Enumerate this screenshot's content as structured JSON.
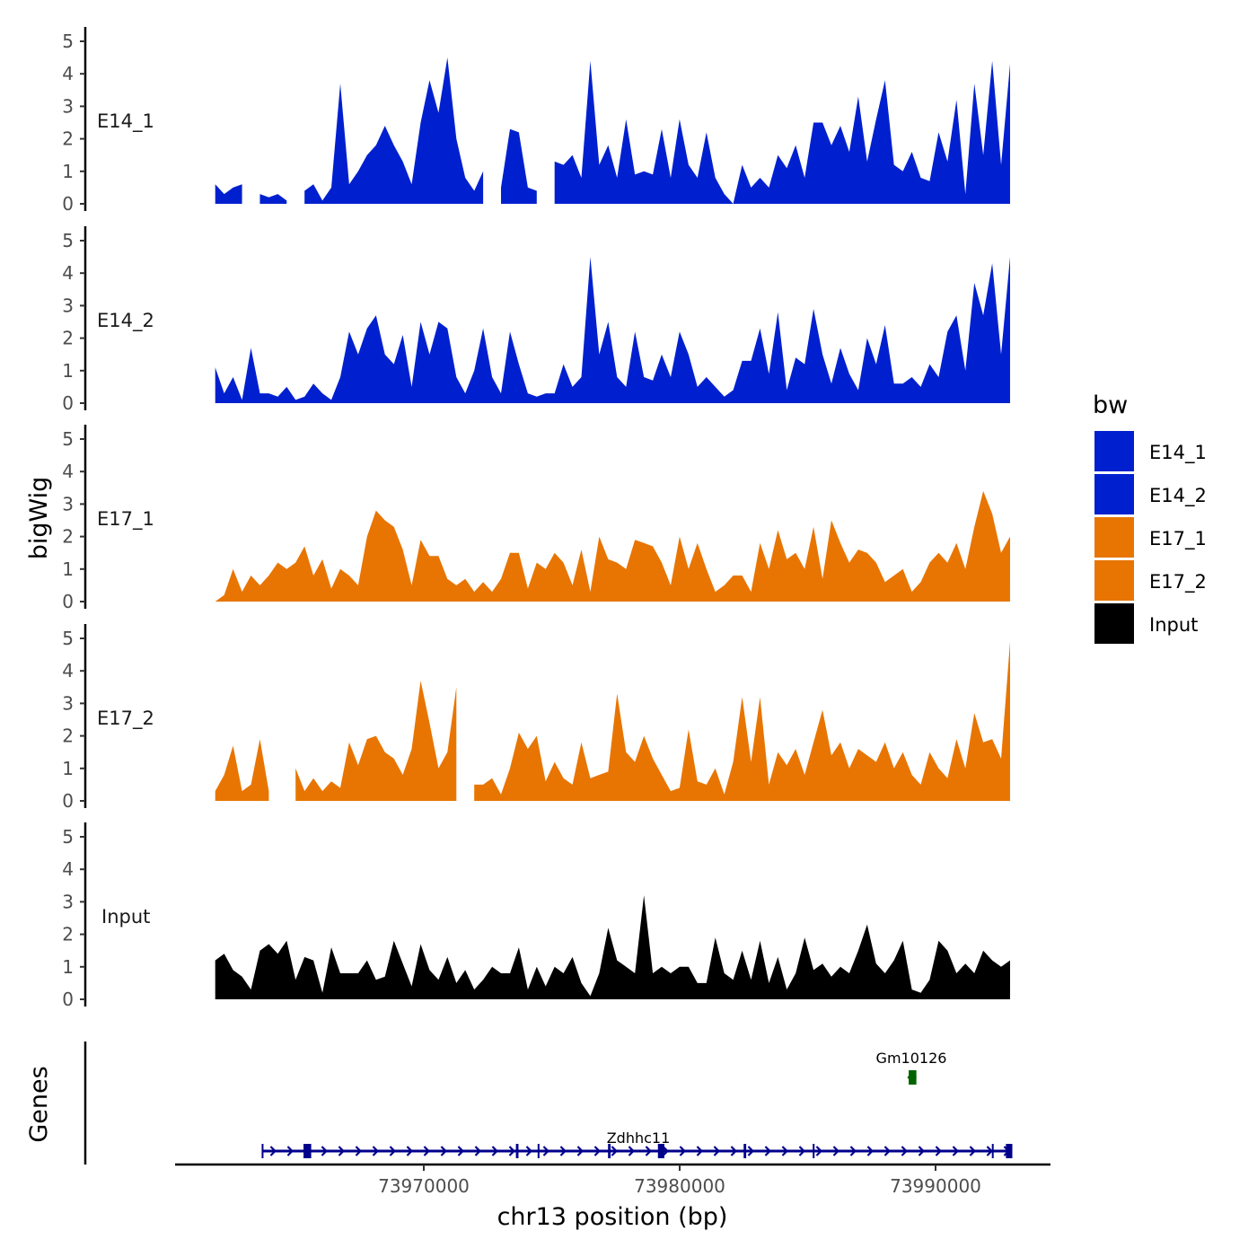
{
  "chart_data": {
    "type": "area",
    "title": "",
    "xlabel": "chr13 position (bp)",
    "ylabel": "bigWig",
    "genes_label": "Genes",
    "xlim": [
      73956500,
      73995000
    ],
    "ylim": [
      0,
      5
    ],
    "x_ticks": [
      73970000,
      73980000,
      73990000
    ],
    "x_tick_labels": [
      "73970000",
      "73980000",
      "73990000"
    ],
    "y_ticks": [
      0,
      1,
      2,
      3,
      4,
      5
    ],
    "y_tick_labels": [
      "0",
      "1",
      "2",
      "3",
      "4",
      "5"
    ],
    "x_start": 73961850,
    "x_step": 349,
    "legend": {
      "title": "bw",
      "position": "right",
      "entries": [
        "E14_1",
        "E14_2",
        "E17_1",
        "E17_2",
        "Input"
      ]
    },
    "series": [
      {
        "name": "E14_1",
        "color": "#0020CF",
        "values": [
          0.6,
          0.3,
          0.5,
          0.6,
          null,
          0.3,
          0.2,
          0.3,
          0.1,
          null,
          0.4,
          0.6,
          0.1,
          0.5,
          3.7,
          0.6,
          1.0,
          1.5,
          1.8,
          2.4,
          1.8,
          1.3,
          0.6,
          2.5,
          3.8,
          2.8,
          4.5,
          2.0,
          0.8,
          0.4,
          1.0,
          null,
          0.5,
          2.3,
          2.2,
          0.5,
          0.4,
          null,
          1.3,
          1.2,
          1.5,
          0.8,
          4.4,
          1.2,
          1.8,
          0.8,
          2.6,
          0.9,
          1.0,
          0.9,
          2.3,
          0.8,
          2.6,
          1.2,
          0.8,
          2.2,
          0.8,
          0.3,
          0.0,
          1.2,
          0.5,
          0.8,
          0.5,
          1.5,
          1.1,
          1.8,
          0.8,
          2.5,
          2.5,
          1.8,
          2.4,
          1.6,
          3.3,
          1.3,
          2.6,
          3.8,
          1.2,
          1.0,
          1.6,
          0.8,
          0.7,
          2.2,
          1.3,
          3.2,
          0.3,
          3.7,
          1.5,
          4.4,
          1.2,
          4.3
        ]
      },
      {
        "name": "E14_2",
        "color": "#0020CF",
        "values": [
          1.1,
          0.3,
          0.8,
          0.1,
          1.7,
          0.3,
          0.3,
          0.2,
          0.5,
          0.1,
          0.2,
          0.6,
          0.3,
          0.1,
          0.8,
          2.2,
          1.5,
          2.3,
          2.7,
          1.5,
          1.2,
          2.1,
          0.5,
          2.5,
          1.5,
          2.5,
          2.3,
          0.8,
          0.3,
          1.0,
          2.3,
          0.8,
          0.3,
          2.2,
          1.2,
          0.3,
          0.2,
          0.3,
          0.3,
          1.2,
          0.5,
          0.8,
          4.5,
          1.5,
          2.5,
          0.8,
          0.5,
          2.2,
          0.8,
          0.7,
          1.5,
          0.8,
          2.2,
          1.5,
          0.5,
          0.8,
          0.5,
          0.2,
          0.4,
          1.3,
          1.3,
          2.3,
          0.9,
          2.8,
          0.4,
          1.4,
          1.2,
          2.9,
          1.5,
          0.6,
          1.7,
          0.9,
          0.4,
          2.0,
          1.2,
          2.4,
          0.6,
          0.6,
          0.8,
          0.5,
          1.2,
          0.8,
          2.2,
          2.7,
          1.0,
          3.7,
          2.7,
          4.3,
          1.5,
          4.5
        ]
      },
      {
        "name": "E17_1",
        "color": "#E87502",
        "values": [
          0.0,
          0.2,
          1.0,
          0.3,
          0.8,
          0.5,
          0.8,
          1.2,
          1.0,
          1.2,
          1.7,
          0.8,
          1.3,
          0.4,
          1.0,
          0.8,
          0.5,
          2.0,
          2.8,
          2.5,
          2.3,
          1.6,
          0.5,
          1.9,
          1.4,
          1.4,
          0.7,
          0.5,
          0.7,
          0.3,
          0.6,
          0.3,
          0.7,
          1.5,
          1.5,
          0.4,
          1.2,
          1.0,
          1.5,
          1.2,
          0.5,
          1.6,
          0.3,
          2.0,
          1.3,
          1.2,
          1.0,
          1.9,
          1.8,
          1.7,
          1.2,
          0.5,
          2.0,
          1.0,
          1.8,
          1.0,
          0.3,
          0.5,
          0.8,
          0.8,
          0.3,
          1.8,
          1.0,
          2.2,
          1.3,
          1.5,
          1.0,
          2.3,
          0.7,
          2.5,
          1.8,
          1.2,
          1.6,
          1.5,
          1.2,
          0.6,
          0.8,
          1.0,
          0.3,
          0.6,
          1.2,
          1.5,
          1.2,
          1.8,
          1.0,
          2.3,
          3.4,
          2.7,
          1.5,
          2.0
        ]
      },
      {
        "name": "E17_2",
        "color": "#E87502",
        "values": [
          0.3,
          0.8,
          1.7,
          0.3,
          0.5,
          1.9,
          0.3,
          null,
          null,
          1.0,
          0.3,
          0.7,
          0.3,
          0.6,
          0.4,
          1.8,
          1.1,
          1.9,
          2.0,
          1.5,
          1.3,
          0.8,
          1.6,
          3.7,
          2.4,
          1.0,
          1.5,
          3.5,
          null,
          0.5,
          0.5,
          0.7,
          0.2,
          1.0,
          2.1,
          1.6,
          2.0,
          0.6,
          1.2,
          0.7,
          0.5,
          1.8,
          0.7,
          0.8,
          0.9,
          3.3,
          1.5,
          1.2,
          2.0,
          1.3,
          0.8,
          0.3,
          0.4,
          2.2,
          0.6,
          0.5,
          1.0,
          0.2,
          1.2,
          3.2,
          1.2,
          3.2,
          0.5,
          1.5,
          1.1,
          1.6,
          0.8,
          1.8,
          2.8,
          1.4,
          1.8,
          1.0,
          1.6,
          1.4,
          1.2,
          1.8,
          1.0,
          1.5,
          0.8,
          0.5,
          1.5,
          1.0,
          0.7,
          1.9,
          1.0,
          2.7,
          1.8,
          1.9,
          1.3,
          4.9
        ]
      },
      {
        "name": "Input",
        "color": "#000000",
        "values": [
          1.2,
          1.4,
          0.9,
          0.7,
          0.3,
          1.5,
          1.7,
          1.4,
          1.8,
          0.6,
          1.3,
          1.2,
          0.2,
          1.6,
          0.8,
          0.8,
          0.8,
          1.2,
          0.6,
          0.7,
          1.8,
          1.1,
          0.4,
          1.7,
          0.9,
          0.6,
          1.3,
          0.5,
          0.9,
          0.3,
          0.6,
          1.0,
          0.8,
          0.8,
          1.6,
          0.3,
          1.0,
          0.4,
          1.0,
          0.8,
          1.3,
          0.5,
          0.1,
          0.8,
          2.2,
          1.2,
          1.0,
          0.8,
          3.2,
          0.8,
          1.0,
          0.8,
          1.0,
          1.0,
          0.5,
          0.5,
          1.9,
          0.8,
          0.6,
          1.5,
          0.6,
          1.8,
          0.5,
          1.3,
          0.3,
          0.8,
          1.9,
          0.9,
          1.1,
          0.7,
          1.0,
          0.8,
          1.5,
          2.3,
          1.1,
          0.8,
          1.2,
          1.8,
          0.3,
          0.2,
          0.6,
          1.8,
          1.5,
          0.8,
          1.1,
          0.8,
          1.5,
          1.2,
          1.0,
          1.2
        ]
      }
    ],
    "genes": [
      {
        "name": "Zdhhc11",
        "strand": "+",
        "color": "#00008B",
        "start": 73963700,
        "end": 73993000,
        "exons": [
          [
            73965300,
            73965600
          ],
          [
            73973600,
            73973700
          ],
          [
            73974450,
            73974500
          ],
          [
            73977200,
            73977300
          ],
          [
            73979150,
            73979400
          ],
          [
            73982500,
            73982600
          ],
          [
            73985200,
            73985250
          ],
          [
            73992200,
            73992250
          ],
          [
            73992750,
            73993000
          ]
        ]
      },
      {
        "name": "Gm10126",
        "strand": "-",
        "color": "#006400",
        "start": 73988950,
        "end": 73989250,
        "exons": [
          [
            73988950,
            73989250
          ]
        ]
      }
    ]
  }
}
